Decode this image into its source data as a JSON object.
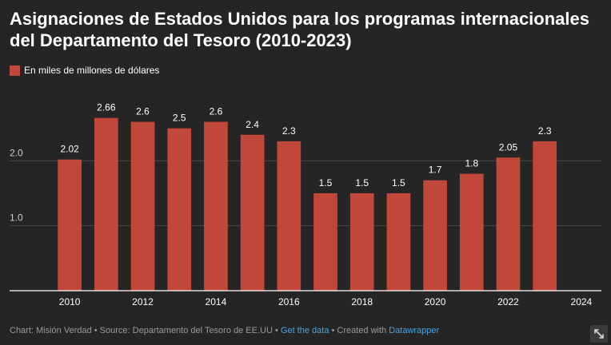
{
  "header": {
    "title": "Asignaciones de Estados Unidos para los programas internacionales del Departamento del Tesoro (2010-2023)"
  },
  "legend": {
    "label": "En miles de millones de dólares",
    "color": "#c0473a"
  },
  "chart_data": {
    "type": "bar",
    "categories": [
      2010,
      2011,
      2012,
      2013,
      2014,
      2015,
      2016,
      2017,
      2018,
      2019,
      2020,
      2021,
      2022,
      2023
    ],
    "values": [
      2.02,
      2.66,
      2.6,
      2.5,
      2.6,
      2.4,
      2.3,
      1.5,
      1.5,
      1.5,
      1.7,
      1.8,
      2.05,
      2.3
    ],
    "value_labels": [
      "2.02",
      "2.66",
      "2.6",
      "2.5",
      "2.6",
      "2.4",
      "2.3",
      "1.5",
      "1.5",
      "1.5",
      "1.7",
      "1.8",
      "2.05",
      "2.3"
    ],
    "x_ticks": [
      "2010",
      "2012",
      "2014",
      "2016",
      "2018",
      "2020",
      "2022",
      "2024"
    ],
    "x_range": [
      2009.45,
      2024.55
    ],
    "y_ticks": [
      "1.0",
      "2.0"
    ],
    "y_tick_values": [
      1.0,
      2.0
    ],
    "ylim": [
      0,
      3.0
    ],
    "grid": true,
    "legend_position": "top-left",
    "bar_color": "#c0473a"
  },
  "footer": {
    "prefix": "Chart: Misión Verdad • Source: Departamento del Tesoro de EE.UU • ",
    "get_data": "Get the data",
    "middle": " • Created with ",
    "tool": "Datawrapper"
  },
  "icons": {
    "expand": "expand-arrows-icon"
  }
}
